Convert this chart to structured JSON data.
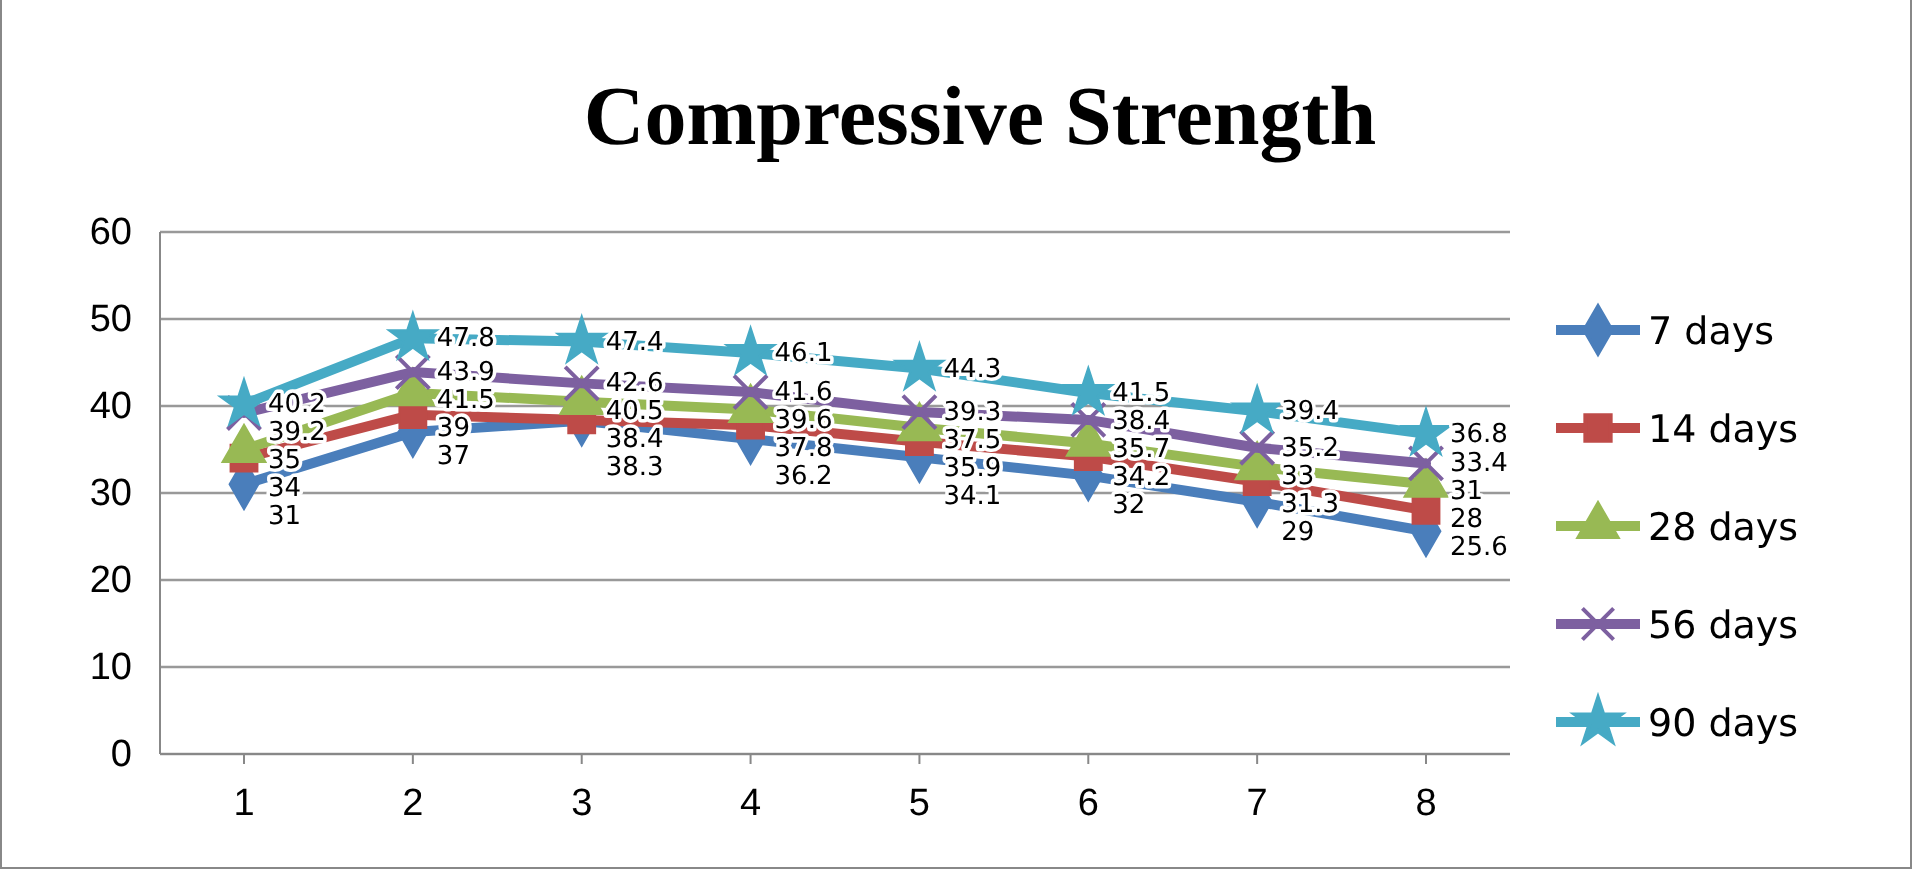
{
  "chart_data": {
    "type": "line",
    "title": "Compressive Strength",
    "categories": [
      "1",
      "2",
      "3",
      "4",
      "5",
      "6",
      "7",
      "8"
    ],
    "ylim": [
      0,
      60
    ],
    "yticks": [
      0,
      10,
      20,
      30,
      40,
      50,
      60
    ],
    "grid": "y",
    "legend": "right",
    "data_labels": true,
    "series": [
      {
        "name": "7 days",
        "color": "#4a7ebb",
        "marker": "diamond",
        "values": [
          31,
          37,
          38.3,
          36.2,
          34.1,
          32,
          29,
          25.6
        ]
      },
      {
        "name": "14 days",
        "color": "#be4b48",
        "marker": "square",
        "values": [
          34,
          39,
          38.4,
          37.8,
          35.9,
          34.2,
          31.3,
          28
        ]
      },
      {
        "name": "28 days",
        "color": "#98b954",
        "marker": "triangle",
        "values": [
          35,
          41.5,
          40.5,
          39.6,
          37.5,
          35.7,
          33,
          31
        ]
      },
      {
        "name": "56 days",
        "color": "#7d60a0",
        "marker": "cross",
        "values": [
          39.2,
          43.9,
          42.6,
          41.6,
          39.3,
          38.4,
          35.2,
          33.4
        ]
      },
      {
        "name": "90 days",
        "color": "#46aac5",
        "marker": "star",
        "values": [
          40.2,
          47.8,
          47.4,
          46.1,
          44.3,
          41.5,
          39.4,
          36.8
        ]
      }
    ]
  }
}
